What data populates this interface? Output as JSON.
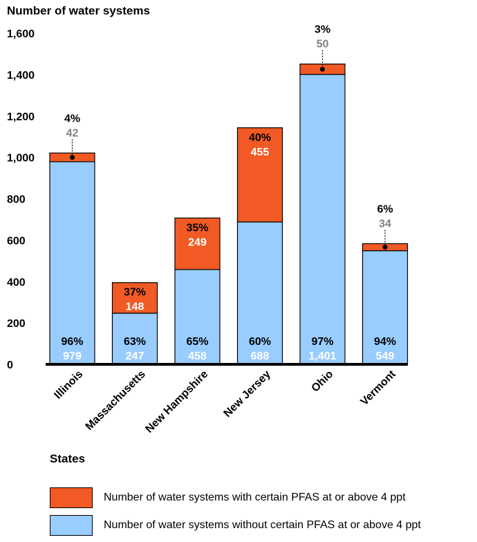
{
  "chart_data": {
    "type": "bar",
    "stacked": true,
    "ylabel": "Number of water systems",
    "xlabel": "States",
    "ylim": [
      0,
      1600
    ],
    "yticks": [
      0,
      200,
      400,
      600,
      800,
      1000,
      1200,
      1400,
      1600
    ],
    "ytick_labels": [
      "0",
      "200",
      "400",
      "600",
      "800",
      "1,000",
      "1,200",
      "1,400",
      "1,600"
    ],
    "categories": [
      "Illinois",
      "Massachusetts",
      "New Hampshire",
      "New Jersey",
      "Ohio",
      "Vermont"
    ],
    "series": [
      {
        "name": "Number of water systems without certain PFAS at or above 4 ppt",
        "color": "#99CCFF",
        "values": [
          979,
          247,
          458,
          688,
          1401,
          549
        ],
        "value_labels": [
          "979",
          "247",
          "458",
          "688",
          "1,401",
          "549"
        ],
        "percent_labels": [
          "96%",
          "63%",
          "65%",
          "60%",
          "97%",
          "94%"
        ]
      },
      {
        "name": "Number of water systems with certain PFAS at or above 4 ppt",
        "color": "#F15A24",
        "values": [
          42,
          148,
          249,
          455,
          50,
          34
        ],
        "value_labels": [
          "42",
          "148",
          "249",
          "455",
          "50",
          "34"
        ],
        "percent_labels": [
          "4%",
          "37%",
          "35%",
          "40%",
          "3%",
          "6%"
        ],
        "label_outside": [
          true,
          false,
          false,
          false,
          true,
          true
        ]
      }
    ],
    "legend": [
      {
        "label": "Number of water systems with certain PFAS at or above 4 ppt",
        "color": "#F15A24"
      },
      {
        "label": "Number of water systems without certain PFAS at or above 4 ppt",
        "color": "#99CCFF"
      }
    ]
  }
}
